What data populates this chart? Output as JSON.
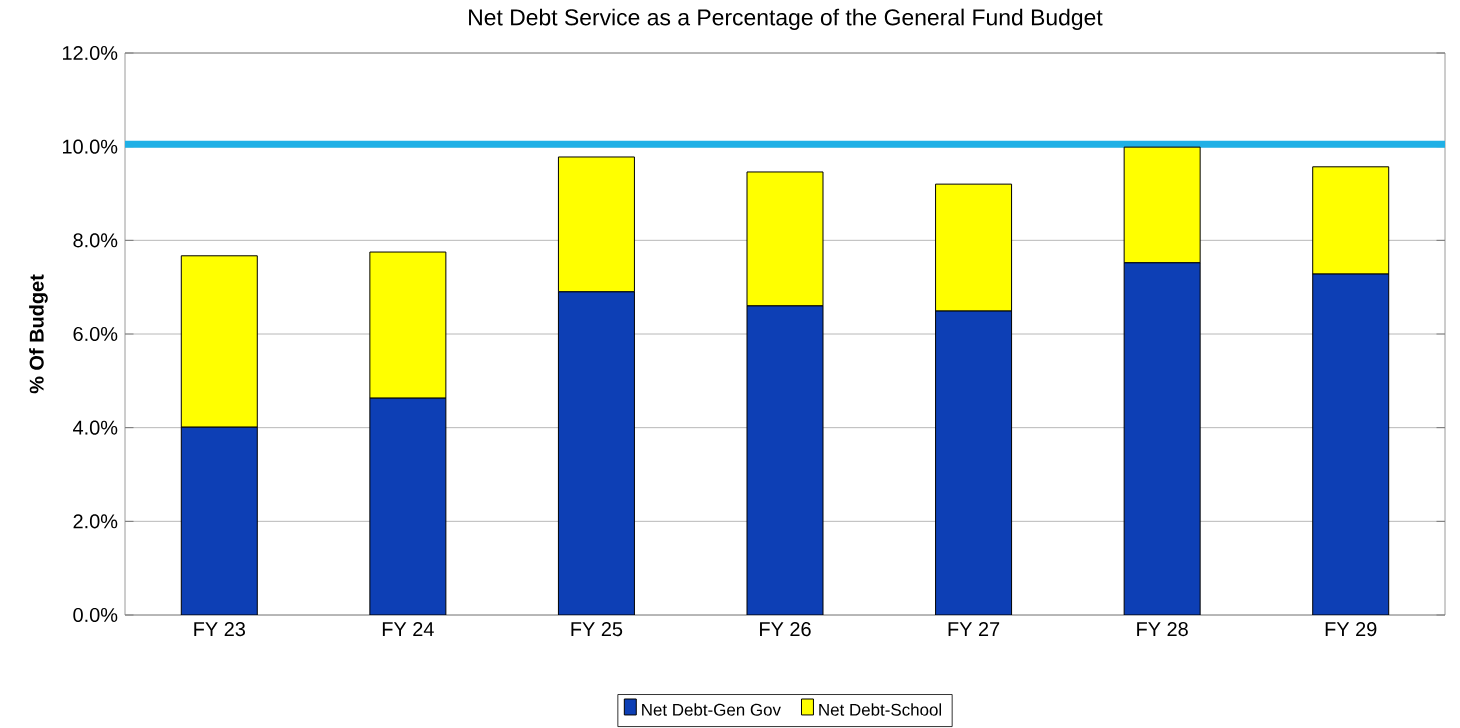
{
  "chart_data": {
    "type": "bar",
    "stacked": true,
    "title": "Net Debt Service as a Percentage of the General Fund Budget",
    "ylabel": "% Of Budget",
    "categories": [
      "FY 23",
      "FY 24",
      "FY 25",
      "FY 26",
      "FY 27",
      "FY 28",
      "FY 29"
    ],
    "series": [
      {
        "name": "Net Debt-Gen Gov",
        "color": "#0d3fb5",
        "values": [
          4.01,
          4.63,
          6.9,
          6.6,
          6.49,
          7.52,
          7.28
        ]
      },
      {
        "name": "Net Debt-School",
        "color": "#ffff00",
        "values": [
          3.66,
          3.12,
          2.88,
          2.86,
          2.71,
          2.47,
          2.29
        ]
      }
    ],
    "ylim": [
      0,
      12
    ],
    "yticks": [
      {
        "value": 0,
        "label": "0.0%"
      },
      {
        "value": 2,
        "label": "2.0%"
      },
      {
        "value": 4,
        "label": "4.0%"
      },
      {
        "value": 6,
        "label": "6.0%"
      },
      {
        "value": 8,
        "label": "8.0%"
      },
      {
        "value": 10,
        "label": "10.0%"
      },
      {
        "value": 12,
        "label": "12.0%"
      }
    ],
    "ref_lines": [
      {
        "axis": "y",
        "value": 10.05,
        "color": "#1fb0e6"
      }
    ],
    "grid": "y",
    "legend": "bottom"
  }
}
